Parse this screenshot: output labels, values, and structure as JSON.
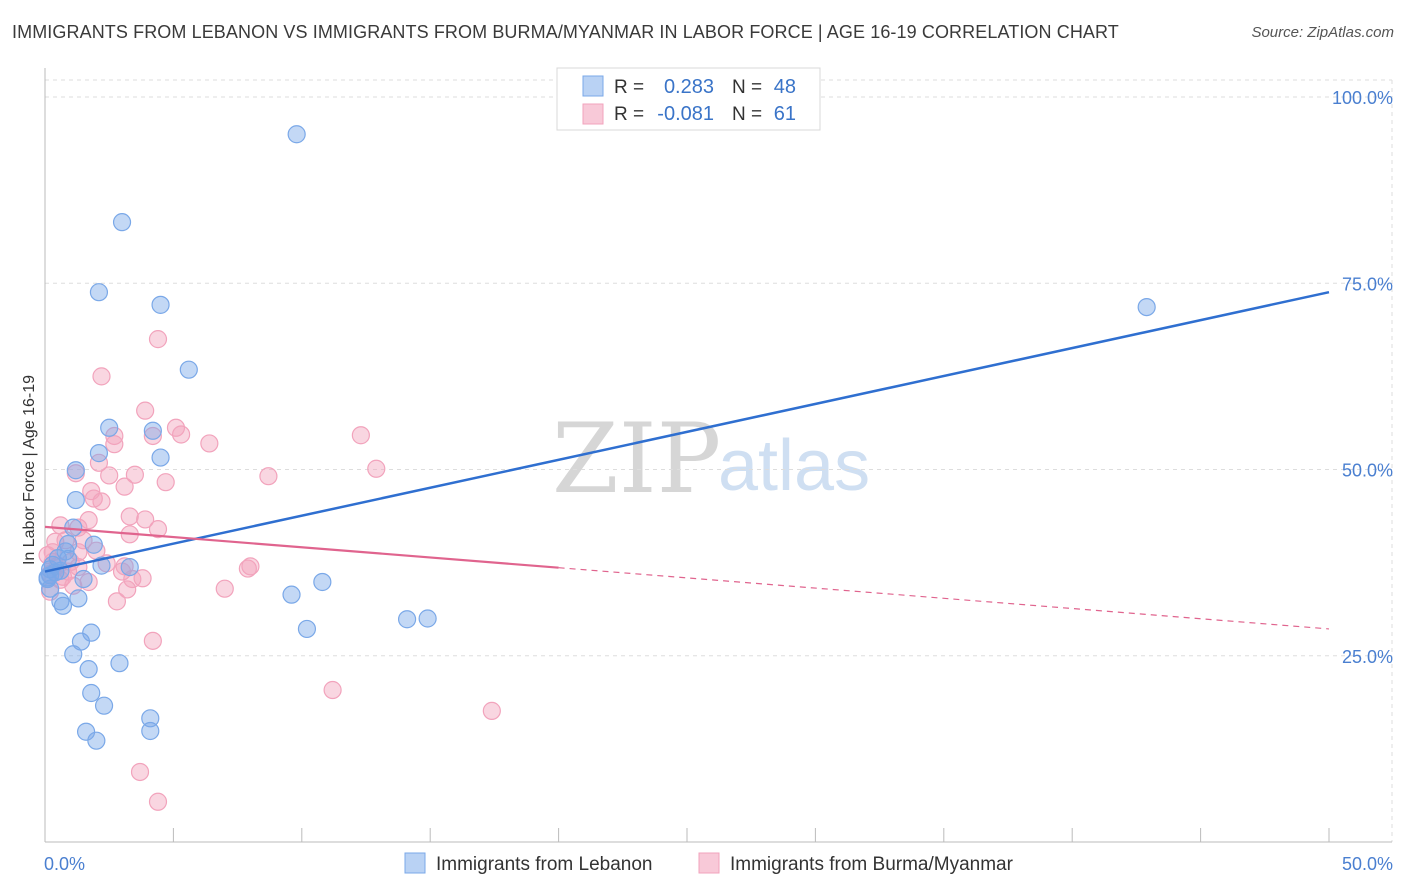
{
  "title": "IMMIGRANTS FROM LEBANON VS IMMIGRANTS FROM BURMA/MYANMAR IN LABOR FORCE | AGE 16-19 CORRELATION CHART",
  "source": "Source: ZipAtlas.com",
  "watermark": {
    "zip": "ZIP",
    "atlas": "atlas"
  },
  "legend": {
    "r_label": "R =",
    "n_label": "N =",
    "rows": [
      {
        "r": "0.283",
        "n": "48"
      },
      {
        "r": "-0.081",
        "n": "61"
      }
    ]
  },
  "chart_data": {
    "type": "scatter",
    "title": "IMMIGRANTS FROM LEBANON VS IMMIGRANTS FROM BURMA/MYANMAR IN LABOR FORCE | AGE 16-19 CORRELATION CHART",
    "xlabel": "",
    "ylabel": "In Labor Force | Age 16-19",
    "xlim": [
      0,
      50
    ],
    "ylim": [
      0,
      100
    ],
    "x_tick_labels": [
      "0.0%",
      "50.0%"
    ],
    "y_ticks": [
      25,
      50,
      75,
      100
    ],
    "y_tick_labels": [
      "25.0%",
      "50.0%",
      "75.0%",
      "100.0%"
    ],
    "colors": {
      "lebanon": "#7aa8e8",
      "burma": "#f2a3bc",
      "lebanon_line": "#2f6fd0",
      "burma_line": "#e0648e"
    },
    "series": [
      {
        "name": "Immigrants from Lebanon",
        "r": 0.283,
        "n": 48,
        "trend": {
          "x0": 0,
          "y0": 36.3,
          "x1": 50,
          "y1": 73.8
        },
        "points": [
          [
            9.8,
            95.0
          ],
          [
            3.0,
            83.2
          ],
          [
            2.1,
            73.8
          ],
          [
            4.5,
            72.1
          ],
          [
            5.6,
            63.4
          ],
          [
            42.9,
            71.8
          ],
          [
            2.5,
            55.6
          ],
          [
            4.2,
            55.2
          ],
          [
            2.1,
            52.2
          ],
          [
            4.5,
            51.6
          ],
          [
            1.2,
            49.9
          ],
          [
            1.2,
            45.9
          ],
          [
            1.1,
            42.2
          ],
          [
            1.9,
            39.9
          ],
          [
            0.9,
            40.0
          ],
          [
            0.8,
            39.0
          ],
          [
            0.9,
            38.0
          ],
          [
            0.5,
            38.1
          ],
          [
            0.3,
            37.2
          ],
          [
            0.2,
            36.6
          ],
          [
            0.1,
            35.5
          ],
          [
            0.2,
            35.8
          ],
          [
            0.4,
            36.2
          ],
          [
            0.6,
            36.4
          ],
          [
            2.2,
            37.1
          ],
          [
            3.3,
            36.9
          ],
          [
            1.5,
            35.3
          ],
          [
            0.6,
            32.3
          ],
          [
            0.7,
            31.7
          ],
          [
            1.3,
            32.7
          ],
          [
            9.6,
            33.2
          ],
          [
            10.8,
            34.9
          ],
          [
            14.1,
            29.9
          ],
          [
            14.9,
            30.0
          ],
          [
            10.2,
            28.6
          ],
          [
            1.8,
            28.1
          ],
          [
            1.4,
            26.9
          ],
          [
            1.1,
            25.2
          ],
          [
            1.7,
            23.2
          ],
          [
            2.9,
            24.0
          ],
          [
            1.8,
            20.0
          ],
          [
            2.3,
            18.3
          ],
          [
            4.1,
            16.6
          ],
          [
            4.1,
            14.9
          ],
          [
            1.6,
            14.8
          ],
          [
            2.0,
            13.6
          ],
          [
            0.2,
            34.0
          ],
          [
            0.1,
            35.3
          ]
        ]
      },
      {
        "name": "Immigrants from Burma/Myanmar",
        "r": -0.081,
        "n": 61,
        "trend": {
          "solid_to_x": 20,
          "x0": 0,
          "y0": 42.3,
          "x1": 50,
          "y1": 28.6
        },
        "points": [
          [
            4.4,
            67.5
          ],
          [
            2.2,
            62.5
          ],
          [
            3.9,
            57.9
          ],
          [
            5.1,
            55.6
          ],
          [
            5.3,
            54.7
          ],
          [
            4.2,
            54.5
          ],
          [
            2.7,
            54.5
          ],
          [
            2.7,
            53.4
          ],
          [
            6.4,
            53.5
          ],
          [
            12.3,
            54.6
          ],
          [
            2.1,
            50.9
          ],
          [
            3.5,
            49.3
          ],
          [
            2.5,
            49.2
          ],
          [
            1.2,
            49.5
          ],
          [
            8.7,
            49.1
          ],
          [
            12.9,
            50.1
          ],
          [
            4.7,
            48.3
          ],
          [
            3.1,
            47.7
          ],
          [
            1.8,
            47.1
          ],
          [
            1.9,
            46.1
          ],
          [
            2.2,
            45.7
          ],
          [
            1.7,
            43.2
          ],
          [
            3.3,
            43.7
          ],
          [
            3.9,
            43.3
          ],
          [
            0.6,
            42.5
          ],
          [
            4.4,
            42.0
          ],
          [
            1.3,
            42.2
          ],
          [
            3.3,
            41.3
          ],
          [
            1.5,
            40.5
          ],
          [
            2.0,
            39.1
          ],
          [
            1.3,
            38.9
          ],
          [
            0.3,
            38.9
          ],
          [
            0.3,
            37.6
          ],
          [
            0.5,
            37.1
          ],
          [
            0.9,
            36.3
          ],
          [
            0.6,
            35.2
          ],
          [
            1.1,
            34.4
          ],
          [
            1.7,
            34.9
          ],
          [
            3.0,
            36.3
          ],
          [
            3.4,
            35.3
          ],
          [
            3.8,
            35.4
          ],
          [
            3.1,
            37.0
          ],
          [
            3.2,
            33.9
          ],
          [
            8.0,
            37.0
          ],
          [
            7.9,
            36.7
          ],
          [
            7.0,
            34.0
          ],
          [
            2.8,
            32.3
          ],
          [
            0.2,
            33.6
          ],
          [
            0.1,
            38.5
          ],
          [
            4.2,
            27.0
          ],
          [
            11.2,
            20.4
          ],
          [
            17.4,
            17.6
          ],
          [
            3.7,
            9.4
          ],
          [
            4.4,
            5.4
          ],
          [
            0.8,
            40.5
          ],
          [
            1.3,
            36.9
          ],
          [
            2.4,
            37.4
          ],
          [
            0.7,
            35.6
          ],
          [
            0.4,
            40.3
          ],
          [
            1.0,
            37.6
          ],
          [
            0.2,
            36.0
          ]
        ]
      }
    ]
  }
}
